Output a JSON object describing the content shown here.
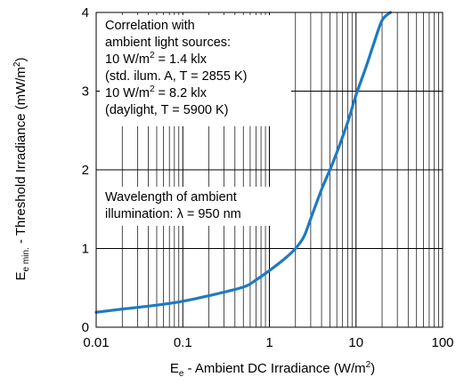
{
  "chart_data": {
    "type": "line",
    "x_scale": "log",
    "xlim": [
      0.01,
      100
    ],
    "ylim": [
      0,
      4
    ],
    "x_ticks": [
      0.01,
      0.1,
      1,
      10,
      100
    ],
    "x_tick_labels": [
      "0.01",
      "0.1",
      "1",
      "10",
      "100"
    ],
    "y_ticks": [
      0,
      1,
      2,
      3,
      4
    ],
    "y_tick_labels": [
      "0",
      "1",
      "2",
      "3",
      "4"
    ],
    "xlabel": {
      "main": "E",
      "sub": "e",
      "rest": " - Ambient DC Irradiance (W/m",
      "sup": "2",
      "end": ")"
    },
    "ylabel": {
      "main": "E",
      "sub": "e min.",
      "rest": " - Threshold Irradiance (mW/m",
      "sup": "2",
      "end": ")"
    },
    "grid": true,
    "line_color": "#1e7ac2",
    "annotation_correlation": [
      {
        "text": "Correlation with"
      },
      {
        "text": "ambient light sources:"
      },
      {
        "pre": "10 W/m",
        "sup": "2",
        "post": " = 1.4 klx"
      },
      {
        "text": "(std. ilum. A, T = 2855 K)"
      },
      {
        "pre": "10 W/m",
        "sup": "2",
        "post": " = 8.2 klx"
      },
      {
        "text": "(daylight, T = 5900 K)"
      }
    ],
    "annotation_wavelength": [
      "Wavelength of ambient",
      "illumination: λ = 950 nm"
    ],
    "series": [
      {
        "x": [
          0.01,
          0.02,
          0.05,
          0.1,
          0.2,
          0.5,
          0.7,
          1,
          1.5,
          2,
          2.5,
          3,
          4,
          5,
          6,
          8,
          10,
          13,
          16,
          20,
          25
        ],
        "y": [
          0.19,
          0.23,
          0.28,
          0.33,
          0.4,
          0.51,
          0.6,
          0.72,
          0.87,
          1.0,
          1.15,
          1.38,
          1.75,
          2.0,
          2.22,
          2.6,
          2.95,
          3.3,
          3.6,
          3.9,
          4.0
        ]
      }
    ]
  }
}
